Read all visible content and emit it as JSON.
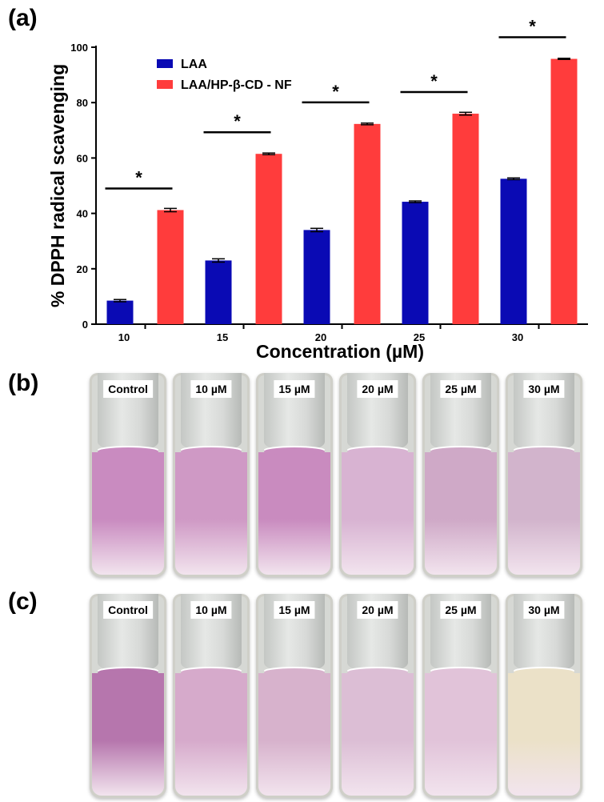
{
  "panels": {
    "a": "(a)",
    "b": "(b)",
    "c": "(c)"
  },
  "chart_data": {
    "type": "bar",
    "title": "",
    "xlabel": "Concentration (µM)",
    "ylabel": "% DPPH radical scavenging",
    "ylim": [
      0,
      100
    ],
    "yticks": [
      0,
      20,
      40,
      60,
      80,
      100
    ],
    "categories": [
      "10",
      "15",
      "20",
      "25",
      "30"
    ],
    "series": [
      {
        "name": "LAA",
        "color": "#0a0ab4",
        "values": [
          8.5,
          23.0,
          34.0,
          44.2,
          52.5
        ],
        "errors": [
          0.4,
          0.6,
          0.6,
          0.3,
          0.3
        ]
      },
      {
        "name": "LAA/HP-β-CD - NF",
        "color": "#ff3c3c",
        "values": [
          41.2,
          61.5,
          72.3,
          76.0,
          95.8
        ],
        "errors": [
          0.6,
          0.3,
          0.3,
          0.5,
          0.2
        ]
      }
    ],
    "annotations": [
      "*",
      "*",
      "*",
      "*",
      "*"
    ],
    "legend": "top-left"
  },
  "photo_b": {
    "labels": [
      "Control",
      "10 µM",
      "15 µM",
      "20 µM",
      "25 µM",
      "30 µM"
    ],
    "colors": [
      "#c98bc0",
      "#cf99c5",
      "#c98bbf",
      "#d8b3d2",
      "#cfa9c7",
      "#d2b4cc"
    ]
  },
  "photo_c": {
    "labels": [
      "Control",
      "10 µM",
      "15 µM",
      "20 µM",
      "25 µM",
      "30 µM"
    ],
    "colors": [
      "#b676ad",
      "#d6aacb",
      "#d7b2cc",
      "#dcbed5",
      "#e1c3d9",
      "#ebe1c8"
    ]
  }
}
